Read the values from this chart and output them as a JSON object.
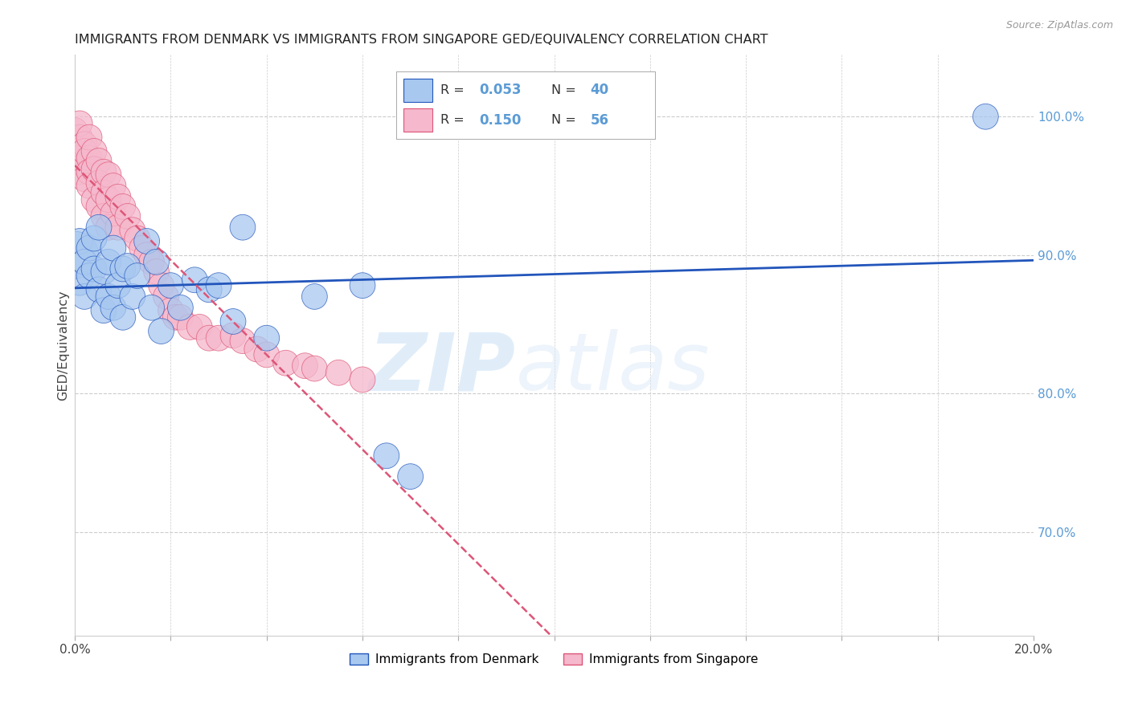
{
  "title": "IMMIGRANTS FROM DENMARK VS IMMIGRANTS FROM SINGAPORE GED/EQUIVALENCY CORRELATION CHART",
  "source": "Source: ZipAtlas.com",
  "ylabel_left": "GED/Equivalency",
  "legend_denmark": "Immigrants from Denmark",
  "legend_singapore": "Immigrants from Singapore",
  "R_denmark": 0.053,
  "N_denmark": 40,
  "R_singapore": 0.15,
  "N_singapore": 56,
  "color_denmark": "#a8c8f0",
  "color_singapore": "#f5b8cc",
  "trendline_denmark_color": "#2255bb",
  "trendline_singapore_color": "#dd5577",
  "xlim": [
    0.0,
    0.2
  ],
  "ylim": [
    0.625,
    1.045
  ],
  "xticks": [
    0.0,
    0.02,
    0.04,
    0.06,
    0.08,
    0.1,
    0.12,
    0.14,
    0.16,
    0.18,
    0.2
  ],
  "yticks_right": [
    0.7,
    0.8,
    0.9,
    1.0
  ],
  "ytick_right_labels": [
    "70.0%",
    "80.0%",
    "90.0%",
    "100.0%"
  ],
  "denmark_x": [
    0.0,
    0.001,
    0.001,
    0.002,
    0.002,
    0.003,
    0.003,
    0.004,
    0.004,
    0.005,
    0.005,
    0.006,
    0.006,
    0.007,
    0.007,
    0.008,
    0.008,
    0.009,
    0.01,
    0.01,
    0.011,
    0.012,
    0.013,
    0.015,
    0.016,
    0.017,
    0.018,
    0.02,
    0.022,
    0.025,
    0.028,
    0.03,
    0.033,
    0.035,
    0.04,
    0.05,
    0.06,
    0.065,
    0.07,
    0.19
  ],
  "denmark_y": [
    0.9,
    0.91,
    0.88,
    0.895,
    0.87,
    0.905,
    0.885,
    0.912,
    0.89,
    0.92,
    0.875,
    0.888,
    0.86,
    0.895,
    0.87,
    0.905,
    0.862,
    0.878,
    0.89,
    0.855,
    0.892,
    0.87,
    0.885,
    0.91,
    0.862,
    0.895,
    0.845,
    0.878,
    0.862,
    0.882,
    0.875,
    0.878,
    0.852,
    0.92,
    0.84,
    0.87,
    0.878,
    0.755,
    0.74,
    1.0
  ],
  "denmark_size": [
    120,
    35,
    35,
    35,
    35,
    35,
    35,
    35,
    35,
    35,
    35,
    35,
    35,
    35,
    35,
    35,
    35,
    35,
    35,
    35,
    35,
    35,
    35,
    35,
    35,
    35,
    35,
    35,
    35,
    35,
    35,
    35,
    35,
    35,
    35,
    35,
    35,
    35,
    35,
    35
  ],
  "singapore_x": [
    0.0,
    0.0,
    0.001,
    0.001,
    0.001,
    0.001,
    0.002,
    0.002,
    0.002,
    0.002,
    0.003,
    0.003,
    0.003,
    0.003,
    0.004,
    0.004,
    0.004,
    0.005,
    0.005,
    0.005,
    0.006,
    0.006,
    0.006,
    0.007,
    0.007,
    0.007,
    0.008,
    0.008,
    0.009,
    0.009,
    0.01,
    0.011,
    0.012,
    0.013,
    0.014,
    0.015,
    0.016,
    0.017,
    0.018,
    0.019,
    0.02,
    0.021,
    0.022,
    0.024,
    0.026,
    0.028,
    0.03,
    0.033,
    0.035,
    0.038,
    0.04,
    0.044,
    0.048,
    0.05,
    0.055,
    0.06
  ],
  "singapore_y": [
    0.99,
    0.975,
    0.985,
    0.97,
    0.96,
    0.995,
    0.98,
    0.965,
    0.975,
    0.955,
    0.97,
    0.96,
    0.985,
    0.95,
    0.975,
    0.962,
    0.94,
    0.968,
    0.952,
    0.935,
    0.96,
    0.945,
    0.928,
    0.958,
    0.94,
    0.92,
    0.95,
    0.93,
    0.942,
    0.92,
    0.935,
    0.928,
    0.918,
    0.912,
    0.905,
    0.9,
    0.895,
    0.888,
    0.878,
    0.87,
    0.86,
    0.855,
    0.855,
    0.848,
    0.848,
    0.84,
    0.84,
    0.842,
    0.838,
    0.832,
    0.828,
    0.822,
    0.82,
    0.818,
    0.815,
    0.81
  ],
  "singapore_size": [
    35,
    35,
    35,
    35,
    35,
    35,
    35,
    35,
    35,
    35,
    35,
    35,
    35,
    35,
    35,
    35,
    35,
    35,
    35,
    35,
    35,
    35,
    35,
    35,
    35,
    35,
    35,
    35,
    35,
    35,
    35,
    35,
    35,
    35,
    35,
    35,
    35,
    35,
    35,
    35,
    35,
    35,
    35,
    35,
    35,
    35,
    35,
    35,
    35,
    35,
    35,
    35,
    35,
    35,
    35,
    35
  ],
  "watermark_zip": "ZIP",
  "watermark_atlas": "atlas",
  "background_color": "#ffffff",
  "grid_color": "#cccccc",
  "right_axis_color": "#5b9bd5",
  "legend_border_color": "#aaaaaa"
}
